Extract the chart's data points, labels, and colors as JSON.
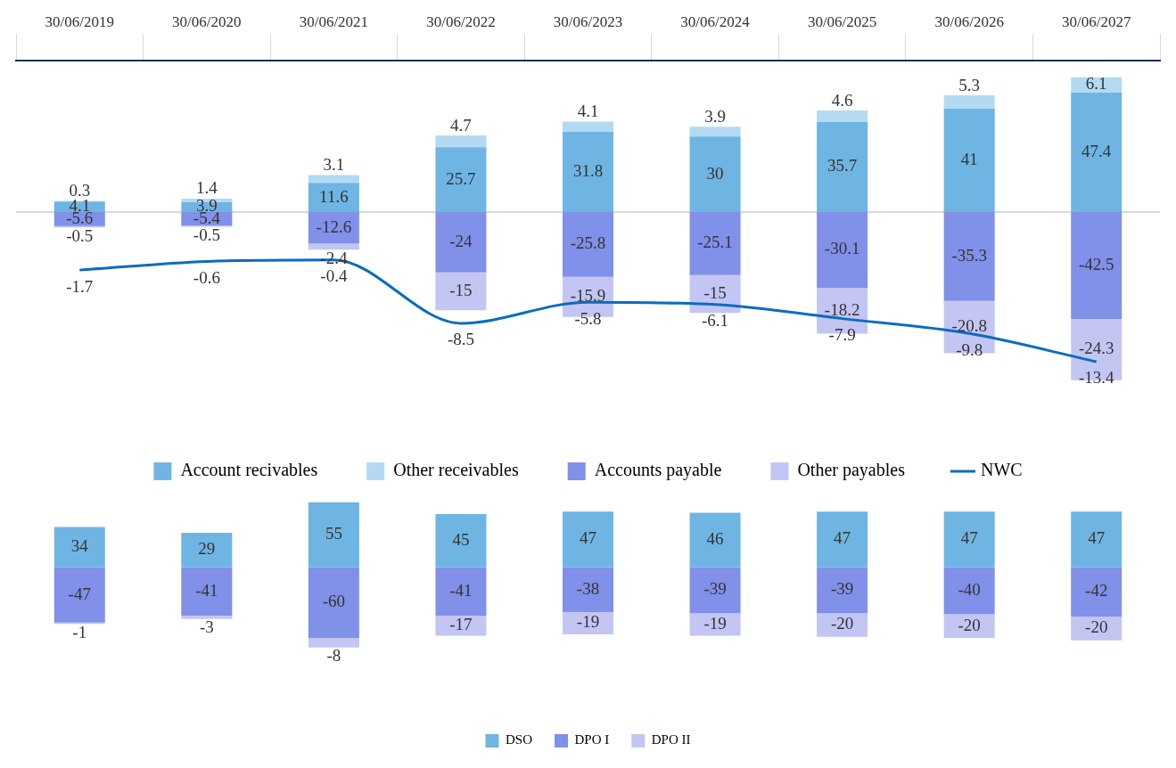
{
  "chart_data": [
    {
      "type": "bar",
      "stacked": true,
      "data_labels": true,
      "legend": "bottom",
      "marker": "none",
      "categories": [
        "30/06/2019",
        "30/06/2020",
        "30/06/2021",
        "30/06/2022",
        "30/06/2023",
        "30/06/2024",
        "30/06/2025",
        "30/06/2026",
        "30/06/2027"
      ],
      "ref_lines": [
        {
          "axis": "y",
          "value": 0,
          "color": "#d9d9d9"
        }
      ],
      "series": [
        {
          "name": "Account recivables",
          "color": "#6fb5e3",
          "values": [
            4.1,
            3.9,
            11.6,
            25.7,
            31.8,
            30.0,
            35.7,
            41.0,
            47.4
          ]
        },
        {
          "name": "Other receivables",
          "color": "#b3daf2",
          "values": [
            0.3,
            1.4,
            3.1,
            4.7,
            4.1,
            3.9,
            4.6,
            5.3,
            6.1
          ]
        },
        {
          "name": "Accounts payable",
          "color": "#8190e8",
          "values": [
            -5.6,
            -5.4,
            -12.6,
            -24.0,
            -25.8,
            -25.1,
            -30.1,
            -35.3,
            -42.5
          ]
        },
        {
          "name": "Other payables",
          "color": "#c3c6f3",
          "values": [
            -0.5,
            -0.5,
            -2.4,
            -15.0,
            -15.9,
            -15.0,
            -18.2,
            -20.8,
            -24.3
          ]
        },
        {
          "name": "NWC",
          "type": "line",
          "axis": "y2",
          "color": "#0b6cbf",
          "values": [
            -1.7,
            -0.6,
            -0.4,
            -8.5,
            -5.8,
            -6.1,
            -7.9,
            -9.8,
            -13.4
          ]
        }
      ]
    },
    {
      "type": "bar",
      "stacked": true,
      "data_labels": true,
      "legend": "bottom",
      "categories": [
        null,
        null,
        null,
        null,
        null,
        null,
        null,
        null,
        null
      ],
      "series": [
        {
          "name": "DSO",
          "color": "#6fb5e3",
          "values": [
            34,
            29,
            55,
            45,
            47,
            46,
            47,
            47,
            47
          ]
        },
        {
          "name": "DPO I",
          "color": "#8190e8",
          "values": [
            -47,
            -41,
            -60,
            -41,
            -38,
            -39,
            -39,
            -40,
            -42
          ]
        },
        {
          "name": "DPO II",
          "color": "#c3c6f3",
          "values": [
            -1,
            -3,
            -8,
            -17,
            -19,
            -19,
            -20,
            -20,
            -20
          ]
        }
      ]
    }
  ]
}
